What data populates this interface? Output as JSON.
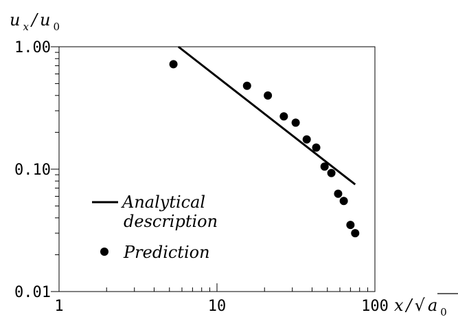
{
  "chart_data": {
    "type": "scatter",
    "x_scale": "log",
    "y_scale": "log",
    "xlim": [
      1,
      100
    ],
    "ylim": [
      0.01,
      1.0
    ],
    "x_ticks": [
      {
        "value": 1,
        "label": "1"
      },
      {
        "value": 10,
        "label": "10"
      },
      {
        "value": 100,
        "label": "100"
      }
    ],
    "y_ticks": [
      {
        "value": 0.01,
        "label": "0.01"
      },
      {
        "value": 0.1,
        "label": "0.10"
      },
      {
        "value": 1.0,
        "label": "1.00"
      }
    ],
    "ylabel": {
      "main": "u",
      "sub1": "x",
      "slash": "/",
      "main2": "u",
      "sub2": "0"
    },
    "xlabel": {
      "main": "x",
      "slash": "/",
      "root": "√",
      "main2": "a",
      "sub2": "0"
    },
    "grid": false,
    "legend_position": "lower-left",
    "series": [
      {
        "name": "Analytical description",
        "kind": "line",
        "x": [
          5.7,
          75
        ],
        "y": [
          1.0,
          0.075
        ]
      },
      {
        "name": "Prediction",
        "kind": "points",
        "x": [
          5.3,
          15.5,
          21,
          26.5,
          31.5,
          37,
          42.5,
          48,
          53,
          58.5,
          63.5,
          70,
          75
        ],
        "y": [
          0.72,
          0.48,
          0.4,
          0.27,
          0.24,
          0.175,
          0.15,
          0.105,
          0.093,
          0.063,
          0.055,
          0.035,
          0.03
        ]
      }
    ]
  }
}
